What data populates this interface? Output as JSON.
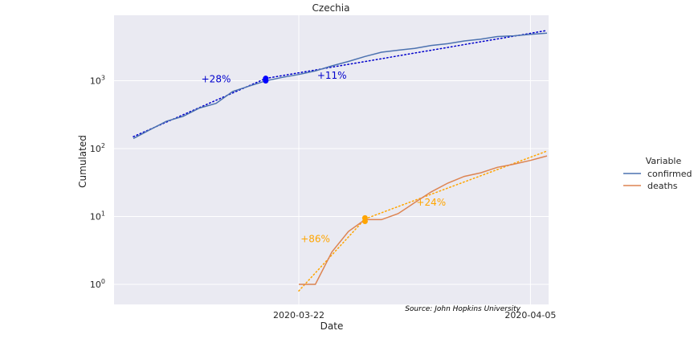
{
  "chart_data": {
    "type": "line",
    "title": "Czechia",
    "xlabel": "Date",
    "ylabel": "Cumulated",
    "yscale": "log",
    "ylim": [
      0.5,
      8000
    ],
    "x_ticks": [
      "2020-03-22",
      "2020-04-05"
    ],
    "y_ticks": [
      {
        "value": 1,
        "base": "10",
        "exp": "0"
      },
      {
        "value": 10,
        "base": "10",
        "exp": "1"
      },
      {
        "value": 100,
        "base": "10",
        "exp": "2"
      },
      {
        "value": 1000,
        "base": "10",
        "exp": "3"
      }
    ],
    "grid": true,
    "legend_title": "Variable",
    "legend_position": "right",
    "series": [
      {
        "name": "confirmed",
        "color": "#4C72B0",
        "x": [
          "2020-03-12",
          "2020-03-13",
          "2020-03-14",
          "2020-03-15",
          "2020-03-16",
          "2020-03-17",
          "2020-03-18",
          "2020-03-19",
          "2020-03-20",
          "2020-03-21",
          "2020-03-22",
          "2020-03-23",
          "2020-03-24",
          "2020-03-25",
          "2020-03-26",
          "2020-03-27",
          "2020-03-28",
          "2020-03-29",
          "2020-03-30",
          "2020-03-31",
          "2020-04-01",
          "2020-04-02",
          "2020-04-03",
          "2020-04-04",
          "2020-04-05",
          "2020-04-06"
        ],
        "values": [
          141,
          189,
          253,
          298,
          396,
          464,
          694,
          833,
          995,
          1120,
          1236,
          1394,
          1654,
          1925,
          2279,
          2631,
          2817,
          3001,
          3308,
          3508,
          3858,
          4091,
          4472,
          4587,
          4822,
          5017
        ]
      },
      {
        "name": "deaths",
        "color": "#DD8452",
        "x": [
          "2020-03-22",
          "2020-03-23",
          "2020-03-24",
          "2020-03-25",
          "2020-03-26",
          "2020-03-27",
          "2020-03-28",
          "2020-03-29",
          "2020-03-30",
          "2020-03-31",
          "2020-04-01",
          "2020-04-02",
          "2020-04-03",
          "2020-04-04",
          "2020-04-05",
          "2020-04-06"
        ],
        "values": [
          1,
          1,
          3,
          6,
          9,
          9,
          11,
          16,
          23,
          31,
          39,
          44,
          53,
          59,
          67,
          78
        ]
      }
    ],
    "trends": [
      {
        "series": "confirmed",
        "color": "#0000CC",
        "x_start": "2020-03-12",
        "x_end": "2020-03-20",
        "y_start": 150,
        "y_end": 1080
      },
      {
        "series": "confirmed",
        "color": "#0000CC",
        "x_start": "2020-03-20",
        "x_end": "2020-04-06",
        "y_start": 1080,
        "y_end": 5500
      },
      {
        "series": "deaths",
        "color": "#FFA500",
        "x_start": "2020-03-22",
        "x_end": "2020-03-26",
        "y_start": 0.8,
        "y_end": 9.2
      },
      {
        "series": "deaths",
        "color": "#FFA500",
        "x_start": "2020-03-26",
        "x_end": "2020-04-06",
        "y_start": 9.2,
        "y_end": 92
      }
    ],
    "markers": [
      {
        "color": "#0000FF",
        "x": "2020-03-20",
        "values": [
          1080,
          1000
        ]
      },
      {
        "color": "#FFA500",
        "x": "2020-03-26",
        "values": [
          9.5,
          8.5
        ]
      }
    ],
    "annotations": [
      {
        "text": "+28%",
        "color": "#0000CC",
        "x": "2020-03-17",
        "y": 950
      },
      {
        "text": "+11%",
        "color": "#0000CC",
        "x": "2020-03-24",
        "y": 1070
      },
      {
        "text": "+86%",
        "color": "#FFA500",
        "x": "2020-03-23",
        "y": 4.2
      },
      {
        "text": "+24%",
        "color": "#FFA500",
        "x": "2020-03-30",
        "y": 14.5
      }
    ],
    "source": "Source: John Hopkins University"
  }
}
